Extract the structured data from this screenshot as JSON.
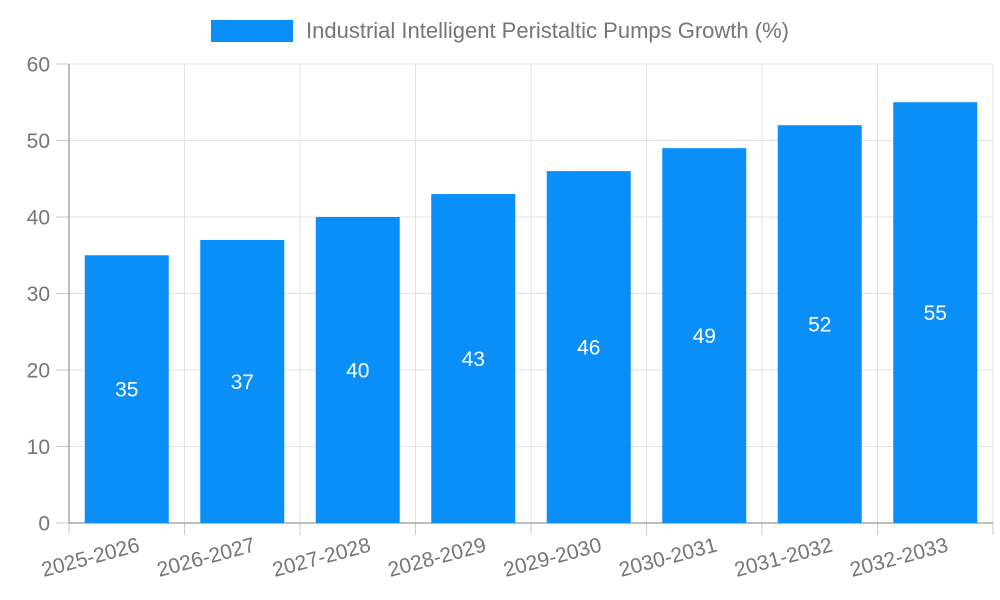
{
  "chart_data": {
    "type": "bar",
    "title": "Industrial Intelligent Peristaltic Pumps Growth (%)",
    "categories": [
      "2025-2026",
      "2026-2027",
      "2027-2028",
      "2028-2029",
      "2029-2030",
      "2030-2031",
      "2031-2032",
      "2032-2033"
    ],
    "values": [
      35,
      37,
      40,
      43,
      46,
      49,
      52,
      55
    ],
    "xlabel": "",
    "ylabel": "",
    "ylim": [
      0,
      60
    ],
    "yticks": [
      0,
      10,
      20,
      30,
      40,
      50,
      60
    ],
    "grid": true,
    "legend_position": "top",
    "value_labels": "centered-white-inside-bars",
    "x_label_rotation_deg": -15
  },
  "colors": {
    "bar": "#0a8ff8",
    "grid": "#e3e3e3",
    "axis": "#a8a8a8",
    "tick": "#c9c9c9",
    "text": "#757575",
    "value_label": "#ffffff",
    "background": "#ffffff"
  }
}
